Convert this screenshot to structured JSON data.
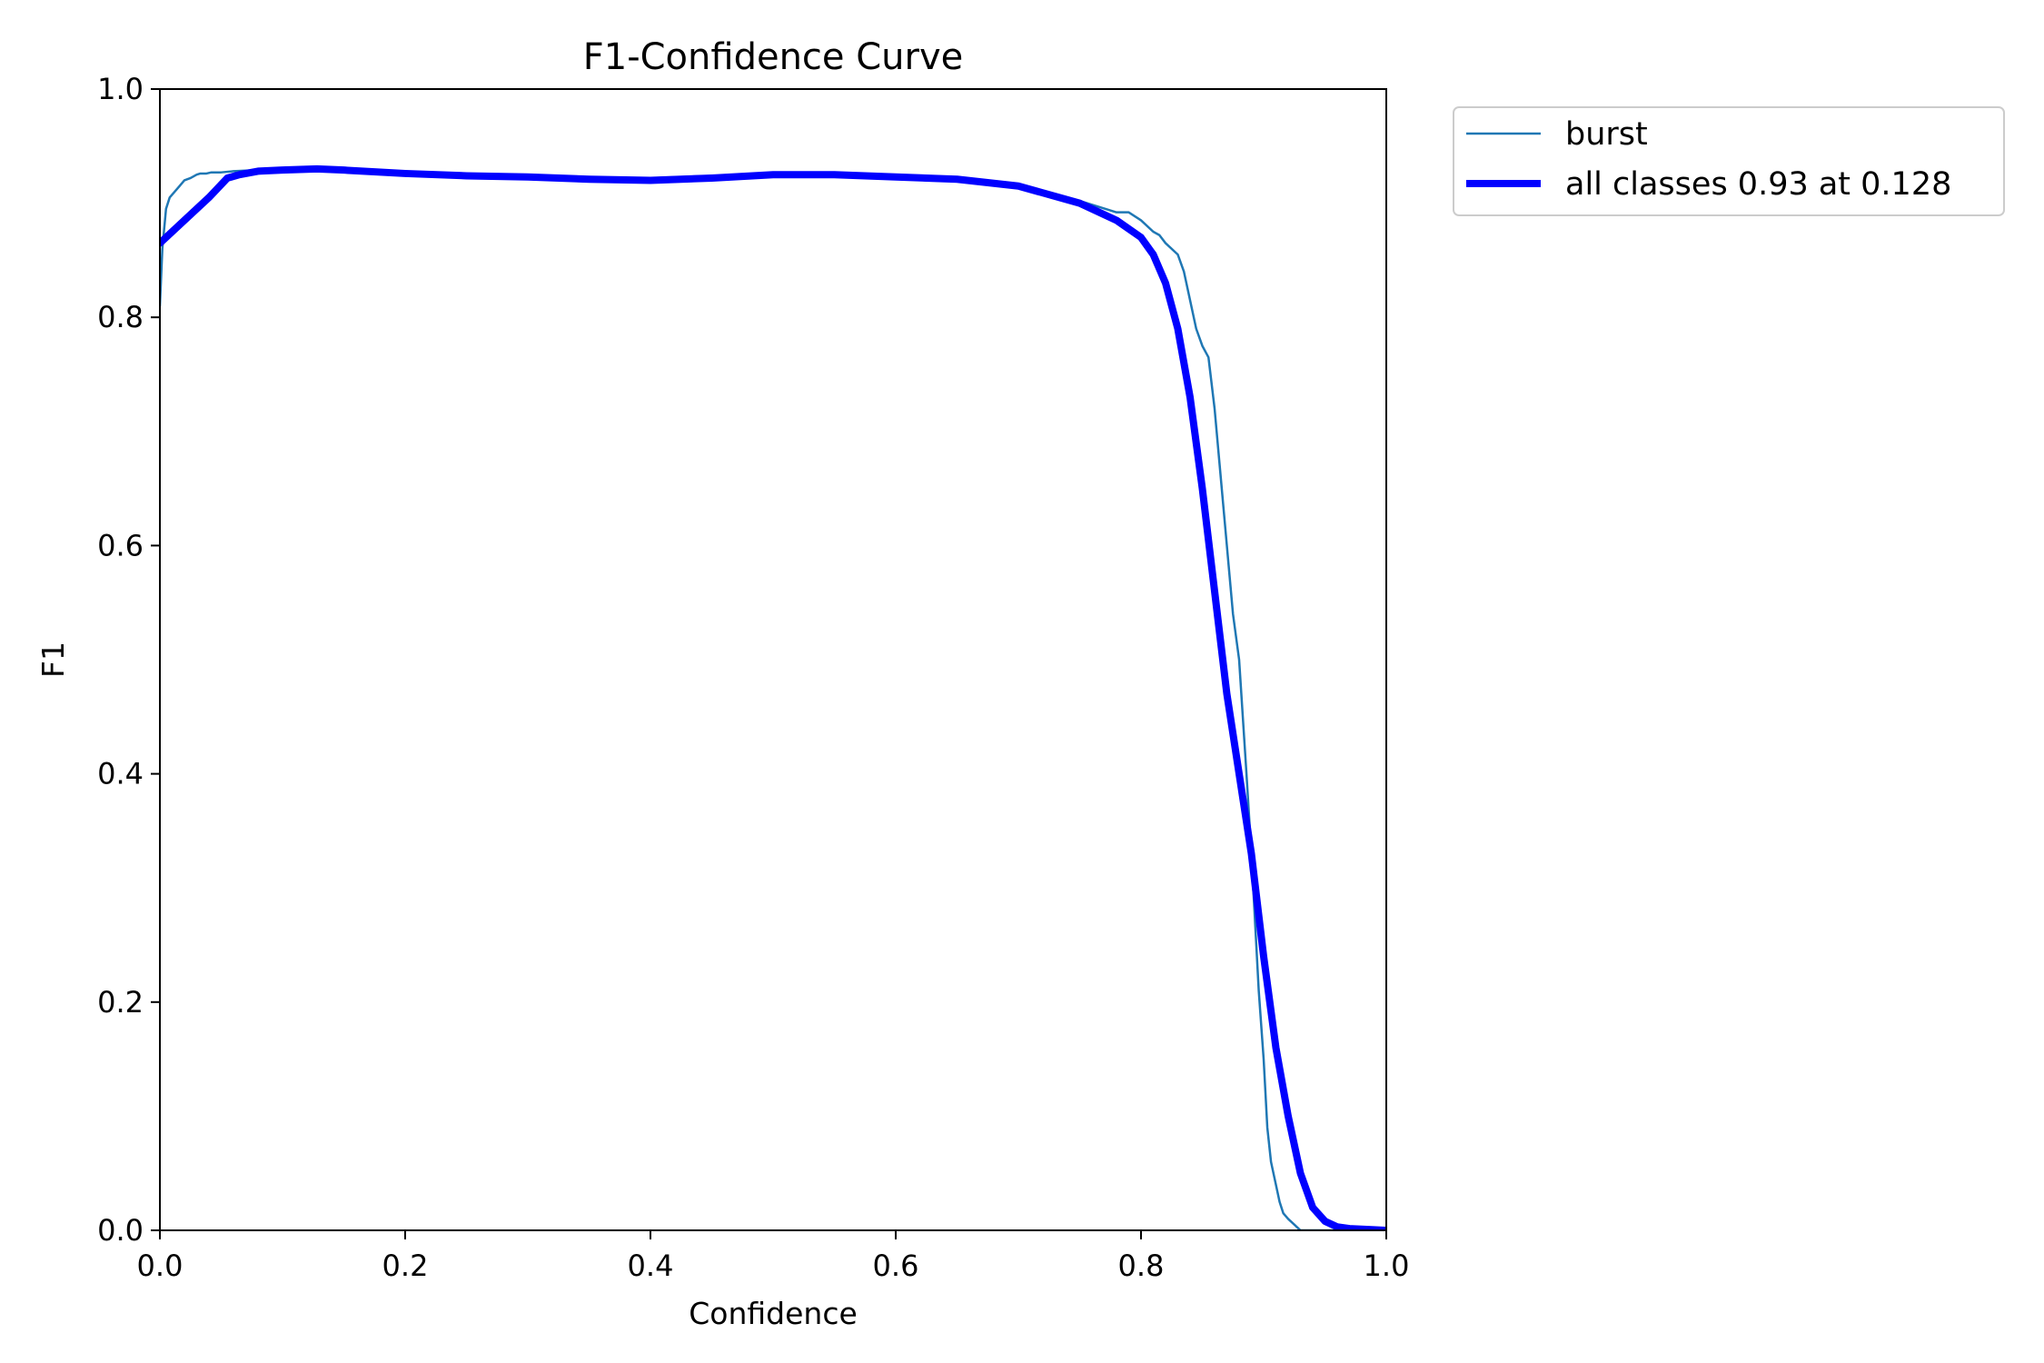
{
  "chart_data": {
    "type": "line",
    "title": "F1-Confidence Curve",
    "xlabel": "Confidence",
    "ylabel": "F1",
    "xlim": [
      0,
      1
    ],
    "ylim": [
      0,
      1
    ],
    "xticks": [
      "0.0",
      "0.2",
      "0.4",
      "0.6",
      "0.8",
      "1.0"
    ],
    "yticks": [
      "0.0",
      "0.2",
      "0.4",
      "0.6",
      "0.8",
      "1.0"
    ],
    "grid": false,
    "legend_position": "outside-top-right",
    "series": [
      {
        "name": "burst",
        "color": "#1f77b4",
        "style": "thin",
        "x": [
          0.0,
          0.002,
          0.005,
          0.008,
          0.012,
          0.016,
          0.02,
          0.025,
          0.03,
          0.033,
          0.038,
          0.042,
          0.05,
          0.06,
          0.08,
          0.1,
          0.13,
          0.16,
          0.18,
          0.2,
          0.25,
          0.3,
          0.35,
          0.4,
          0.45,
          0.5,
          0.55,
          0.6,
          0.65,
          0.7,
          0.75,
          0.78,
          0.79,
          0.8,
          0.81,
          0.815,
          0.82,
          0.83,
          0.835,
          0.84,
          0.845,
          0.85,
          0.855,
          0.86,
          0.865,
          0.87,
          0.875,
          0.88,
          0.883,
          0.886,
          0.89,
          0.893,
          0.896,
          0.9,
          0.903,
          0.906,
          0.91,
          0.913,
          0.916,
          0.92,
          0.925,
          0.93,
          0.935,
          0.938,
          0.94,
          0.945,
          0.96,
          0.98,
          1.0
        ],
        "y": [
          0.81,
          0.86,
          0.895,
          0.905,
          0.91,
          0.915,
          0.92,
          0.922,
          0.925,
          0.926,
          0.926,
          0.927,
          0.927,
          0.928,
          0.929,
          0.929,
          0.929,
          0.928,
          0.927,
          0.926,
          0.925,
          0.924,
          0.922,
          0.922,
          0.924,
          0.925,
          0.925,
          0.923,
          0.92,
          0.915,
          0.902,
          0.892,
          0.892,
          0.885,
          0.875,
          0.872,
          0.865,
          0.855,
          0.84,
          0.815,
          0.79,
          0.775,
          0.765,
          0.72,
          0.66,
          0.6,
          0.54,
          0.5,
          0.45,
          0.4,
          0.33,
          0.27,
          0.21,
          0.15,
          0.09,
          0.06,
          0.04,
          0.025,
          0.015,
          0.01,
          0.005,
          0.0,
          0.0,
          0.0,
          0.0,
          0.0,
          0.0,
          0.0,
          0.0
        ]
      },
      {
        "name": "all classes 0.93 at 0.128",
        "color": "#0000ff",
        "style": "thick",
        "x": [
          0.0,
          0.02,
          0.04,
          0.055,
          0.065,
          0.08,
          0.1,
          0.128,
          0.15,
          0.2,
          0.25,
          0.3,
          0.35,
          0.4,
          0.45,
          0.5,
          0.55,
          0.6,
          0.65,
          0.7,
          0.75,
          0.78,
          0.8,
          0.81,
          0.82,
          0.83,
          0.84,
          0.85,
          0.86,
          0.87,
          0.88,
          0.89,
          0.9,
          0.91,
          0.92,
          0.93,
          0.94,
          0.95,
          0.96,
          0.97,
          0.98,
          0.99,
          1.0
        ],
        "y": [
          0.865,
          0.885,
          0.905,
          0.922,
          0.925,
          0.928,
          0.929,
          0.93,
          0.929,
          0.926,
          0.924,
          0.923,
          0.921,
          0.92,
          0.922,
          0.925,
          0.925,
          0.923,
          0.921,
          0.915,
          0.9,
          0.885,
          0.87,
          0.855,
          0.83,
          0.79,
          0.73,
          0.65,
          0.56,
          0.47,
          0.4,
          0.33,
          0.24,
          0.16,
          0.1,
          0.05,
          0.02,
          0.008,
          0.003,
          0.0015,
          0.001,
          0.0005,
          0.0
        ]
      }
    ]
  }
}
